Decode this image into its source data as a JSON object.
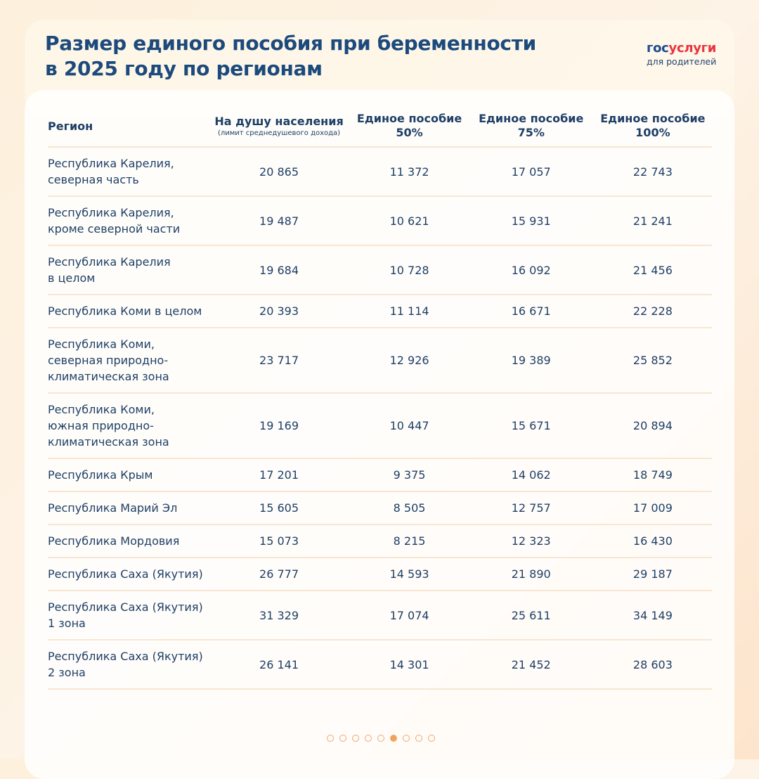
{
  "title": [
    "Размер единого пособия при беременности",
    "в 2025 году по регионам"
  ],
  "logo": {
    "gos": "гос",
    "uslugi": "услуги",
    "sub": "для родителей"
  },
  "columns": {
    "region": "Регион",
    "per_capita": "На душу населения",
    "per_capita_note": "(лимит среднедушевого дохода)",
    "p50": [
      "Единое пособие",
      "50%"
    ],
    "p75": [
      "Единое пособие",
      "75%"
    ],
    "p100": [
      "Единое пособие",
      "100%"
    ]
  },
  "rows": [
    {
      "region": [
        "Республика Карелия,",
        "северная часть"
      ],
      "v": [
        "20 865",
        "11 372",
        "17 057",
        "22 743"
      ]
    },
    {
      "region": [
        "Республика Карелия,",
        "кроме северной части"
      ],
      "v": [
        "19 487",
        "10 621",
        "15 931",
        "21 241"
      ]
    },
    {
      "region": [
        "Республика Карелия",
        "в целом"
      ],
      "v": [
        "19 684",
        "10 728",
        "16 092",
        "21 456"
      ]
    },
    {
      "region": [
        "Республика Коми в целом"
      ],
      "v": [
        "20 393",
        "11 114",
        "16 671",
        "22 228"
      ]
    },
    {
      "region": [
        "Республика Коми,",
        "северная природно-",
        "климатическая зона"
      ],
      "v": [
        "23 717",
        "12 926",
        "19 389",
        "25 852"
      ]
    },
    {
      "region": [
        "Республика Коми,",
        "южная природно-",
        "климатическая зона"
      ],
      "v": [
        "19 169",
        "10 447",
        "15 671",
        "20 894"
      ]
    },
    {
      "region": [
        "Республика Крым"
      ],
      "v": [
        "17 201",
        "9 375",
        "14 062",
        "18 749"
      ]
    },
    {
      "region": [
        "Республика Марий Эл"
      ],
      "v": [
        "15 605",
        "8 505",
        "12 757",
        "17 009"
      ]
    },
    {
      "region": [
        "Республика Мордовия"
      ],
      "v": [
        "15 073",
        "8 215",
        "12 323",
        "16 430"
      ]
    },
    {
      "region": [
        "Республика Саха (Якутия)"
      ],
      "v": [
        "26 777",
        "14 593",
        "21 890",
        "29 187"
      ]
    },
    {
      "region": [
        "Республика Саха (Якутия)",
        "1 зона"
      ],
      "v": [
        "31 329",
        "17 074",
        "25 611",
        "34 149"
      ]
    },
    {
      "region": [
        "Республика Саха (Якутия)",
        "2 зона"
      ],
      "v": [
        "26 141",
        "14 301",
        "21 452",
        "28 603"
      ]
    }
  ],
  "pagination": {
    "total": 9,
    "current": 6
  }
}
